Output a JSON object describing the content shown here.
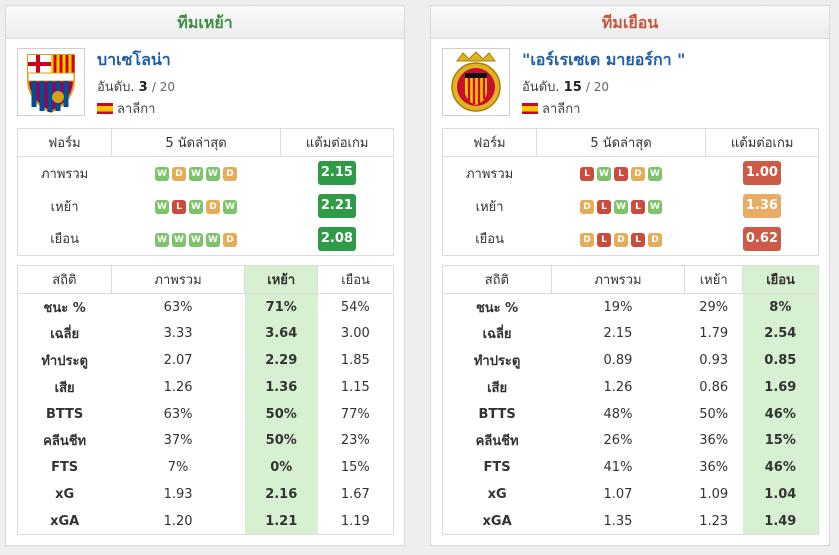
{
  "home": {
    "header": "ทีมเหย้า",
    "header_color": "#3e8e41",
    "team_name": "บาเซโลน่า",
    "rank_label": "อันดับ.",
    "rank": "3",
    "rank_total": "/ 20",
    "league": "ลาลีกา",
    "form_headers": [
      "ฟอร์ม",
      "5 นัดล่าสุด",
      "แต้มต่อเกม"
    ],
    "form_rows": [
      {
        "label": "ภาพรวม",
        "results": [
          "W",
          "D",
          "W",
          "W",
          "D"
        ],
        "ppg": "2.15"
      },
      {
        "label": "เหย้า",
        "results": [
          "W",
          "L",
          "W",
          "D",
          "W"
        ],
        "ppg": "2.21"
      },
      {
        "label": "เยือน",
        "results": [
          "W",
          "W",
          "W",
          "W",
          "D"
        ],
        "ppg": "2.08"
      }
    ],
    "stat_headers": [
      "สถิติ",
      "ภาพรวม",
      "เหย้า",
      "เยือน"
    ],
    "stat_rows": [
      {
        "label": "ชนะ %",
        "overall": "63%",
        "home": "71%",
        "away": "54%"
      },
      {
        "label": "เฉลี่ย",
        "overall": "3.33",
        "home": "3.64",
        "away": "3.00"
      },
      {
        "label": "ทำประตู",
        "overall": "2.07",
        "home": "2.29",
        "away": "1.85"
      },
      {
        "label": "เสีย",
        "overall": "1.26",
        "home": "1.36",
        "away": "1.15"
      },
      {
        "label": "BTTS",
        "overall": "63%",
        "home": "50%",
        "away": "77%"
      },
      {
        "label": "คลีนชีท",
        "overall": "37%",
        "home": "50%",
        "away": "23%"
      },
      {
        "label": "FTS",
        "overall": "7%",
        "home": "0%",
        "away": "15%"
      },
      {
        "label": "xG",
        "overall": "1.93",
        "home": "2.16",
        "away": "1.67"
      },
      {
        "label": "xGA",
        "overall": "1.20",
        "home": "1.21",
        "away": "1.19"
      }
    ]
  },
  "away": {
    "header": "ทีมเยือน",
    "header_color": "#c8553d",
    "team_name": "\"เอร์เรเซเด มายอร์กา \"",
    "rank_label": "อันดับ.",
    "rank": "15",
    "rank_total": "/ 20",
    "league": "ลาลีกา",
    "form_headers": [
      "ฟอร์ม",
      "5 นัดล่าสุด",
      "แต้มต่อเกม"
    ],
    "form_rows": [
      {
        "label": "ภาพรวม",
        "results": [
          "L",
          "W",
          "L",
          "D",
          "W"
        ],
        "ppg": "1.00"
      },
      {
        "label": "เหย้า",
        "results": [
          "D",
          "L",
          "W",
          "L",
          "W"
        ],
        "ppg": "1.36"
      },
      {
        "label": "เยือน",
        "results": [
          "D",
          "L",
          "D",
          "L",
          "D"
        ],
        "ppg": "0.62"
      }
    ],
    "stat_headers": [
      "สถิติ",
      "ภาพรวม",
      "เหย้า",
      "เยือน"
    ],
    "stat_rows": [
      {
        "label": "ชนะ %",
        "overall": "19%",
        "home": "29%",
        "away": "8%"
      },
      {
        "label": "เฉลี่ย",
        "overall": "2.15",
        "home": "1.79",
        "away": "2.54"
      },
      {
        "label": "ทำประตู",
        "overall": "0.89",
        "home": "0.93",
        "away": "0.85"
      },
      {
        "label": "เสีย",
        "overall": "1.26",
        "home": "0.86",
        "away": "1.69"
      },
      {
        "label": "BTTS",
        "overall": "48%",
        "home": "50%",
        "away": "46%"
      },
      {
        "label": "คลีนชีท",
        "overall": "26%",
        "home": "36%",
        "away": "15%"
      },
      {
        "label": "FTS",
        "overall": "41%",
        "home": "36%",
        "away": "46%"
      },
      {
        "label": "xG",
        "overall": "1.07",
        "home": "1.09",
        "away": "1.04"
      },
      {
        "label": "xGA",
        "overall": "1.35",
        "home": "1.23",
        "away": "1.49"
      }
    ]
  },
  "ppg_colors": {
    "good": "#2f9b47",
    "mid": "#e9ac67",
    "bad": "#cd5a46"
  },
  "result_colors": {
    "W": "#7cc36a",
    "D": "#e6ad58",
    "L": "#c94c3e"
  }
}
